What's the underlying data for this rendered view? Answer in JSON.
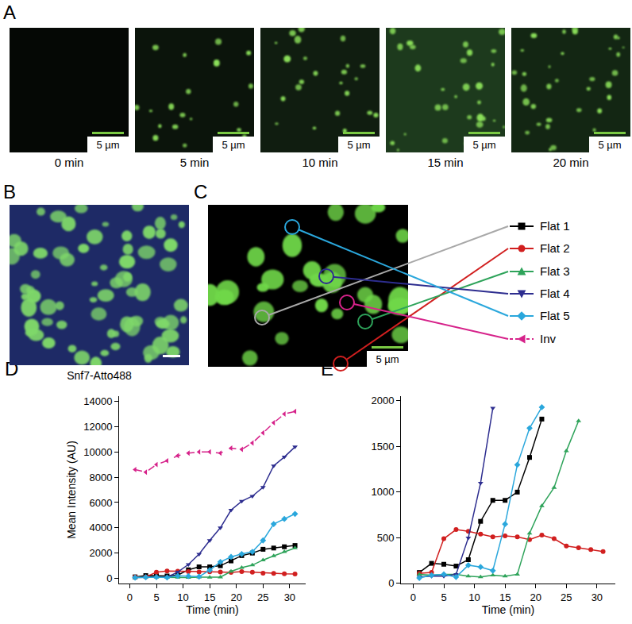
{
  "panels": {
    "A": {
      "label": "A",
      "frames": [
        "0 min",
        "5 min",
        "10 min",
        "15 min",
        "20 min"
      ],
      "scale_bar": "5 µm"
    },
    "B": {
      "label": "B",
      "caption": "Snf7-Atto488"
    },
    "C": {
      "label": "C",
      "scale_bar": "5 µm"
    }
  },
  "chart_data": [
    {
      "panel_label": "D",
      "type": "line",
      "x": [
        1,
        3,
        5,
        7,
        9,
        11,
        13,
        15,
        17,
        19,
        21,
        23,
        25,
        27,
        29,
        31
      ],
      "series": [
        {
          "name": "Flat 1",
          "color": "#000000",
          "marker": "square",
          "line_style": "solid",
          "values": [
            120,
            220,
            210,
            190,
            260,
            680,
            910,
            910,
            1000,
            1380,
            1800,
            2000,
            2300,
            2400,
            2500,
            2600
          ]
        },
        {
          "name": "Flat 2",
          "color": "#d11f1f",
          "marker": "circle",
          "line_style": "solid",
          "values": [
            110,
            120,
            490,
            590,
            570,
            540,
            510,
            520,
            510,
            480,
            530,
            490,
            410,
            390,
            370,
            350
          ]
        },
        {
          "name": "Flat 3",
          "color": "#2ea35a",
          "marker": "triangle-up",
          "line_style": "solid",
          "values": [
            100,
            90,
            100,
            100,
            80,
            70,
            90,
            80,
            100,
            550,
            850,
            1050,
            1450,
            1780,
            2100,
            2400
          ]
        },
        {
          "name": "Flat 4",
          "color": "#2d2d8f",
          "marker": "triangle-down",
          "line_style": "solid",
          "values": [
            70,
            80,
            80,
            100,
            500,
            1100,
            1920,
            3000,
            4000,
            5400,
            6100,
            6500,
            7200,
            8900,
            9600,
            10400
          ]
        },
        {
          "name": "Flat 5",
          "color": "#2aa7dc",
          "marker": "diamond",
          "line_style": "solid",
          "values": [
            60,
            90,
            100,
            70,
            200,
            180,
            140,
            650,
            1300,
            1700,
            1930,
            2100,
            3000,
            4300,
            4700,
            5100
          ]
        },
        {
          "name": "Inv",
          "color": "#d6228a",
          "marker": "triangle-left",
          "line_style": "dashed",
          "values": [
            8600,
            8400,
            9000,
            9300,
            9700,
            9900,
            10000,
            10000,
            9900,
            10300,
            10200,
            10700,
            11500,
            12300,
            13000,
            13200
          ]
        }
      ],
      "x_label": "Time (min)",
      "y_label": "Mean Intensity (AU)",
      "xlim": [
        -2,
        33
      ],
      "ylim": [
        -400,
        14400
      ],
      "xticks": [
        0,
        5,
        10,
        15,
        20,
        25,
        30
      ],
      "yticks": [
        0,
        2000,
        4000,
        6000,
        8000,
        10000,
        12000,
        14000
      ],
      "grid": false
    },
    {
      "panel_label": "E",
      "type": "line",
      "series": [
        {
          "color": "#000000",
          "marker": "square",
          "line_style": "solid",
          "x": [
            1,
            3,
            5,
            7,
            9,
            11,
            13,
            15,
            17,
            19,
            21
          ],
          "values": [
            120,
            220,
            210,
            190,
            260,
            680,
            910,
            910,
            1000,
            1380,
            1800
          ]
        },
        {
          "color": "#d11f1f",
          "marker": "circle",
          "line_style": "solid",
          "x": [
            1,
            3,
            5,
            7,
            9,
            11,
            13,
            15,
            17,
            19,
            21,
            23,
            25,
            27,
            29,
            31
          ],
          "values": [
            110,
            120,
            490,
            590,
            570,
            540,
            510,
            520,
            510,
            480,
            530,
            490,
            410,
            390,
            370,
            350
          ]
        },
        {
          "color": "#2ea35a",
          "marker": "triangle-up",
          "line_style": "solid",
          "x": [
            1,
            3,
            5,
            7,
            9,
            11,
            13,
            15,
            17,
            19,
            21,
            23,
            25,
            27
          ],
          "values": [
            100,
            90,
            100,
            100,
            80,
            70,
            90,
            80,
            100,
            550,
            850,
            1050,
            1450,
            1780
          ]
        },
        {
          "color": "#2d2d8f",
          "marker": "triangle-down",
          "line_style": "solid",
          "x": [
            1,
            3,
            5,
            7,
            9,
            11,
            13
          ],
          "values": [
            70,
            80,
            80,
            100,
            500,
            1100,
            1920
          ]
        },
        {
          "color": "#2aa7dc",
          "marker": "diamond",
          "line_style": "solid",
          "x": [
            1,
            3,
            5,
            7,
            9,
            11,
            13,
            15,
            17,
            19,
            21
          ],
          "values": [
            60,
            90,
            100,
            70,
            200,
            180,
            140,
            650,
            1300,
            1700,
            1930
          ]
        }
      ],
      "x_label": "Time (min)",
      "xlim": [
        -2,
        33
      ],
      "ylim": [
        0,
        2050
      ],
      "xticks": [
        0,
        5,
        10,
        15,
        20,
        25,
        30
      ],
      "yticks": [
        0,
        500,
        1000,
        1500,
        2000
      ],
      "grid": false
    }
  ]
}
